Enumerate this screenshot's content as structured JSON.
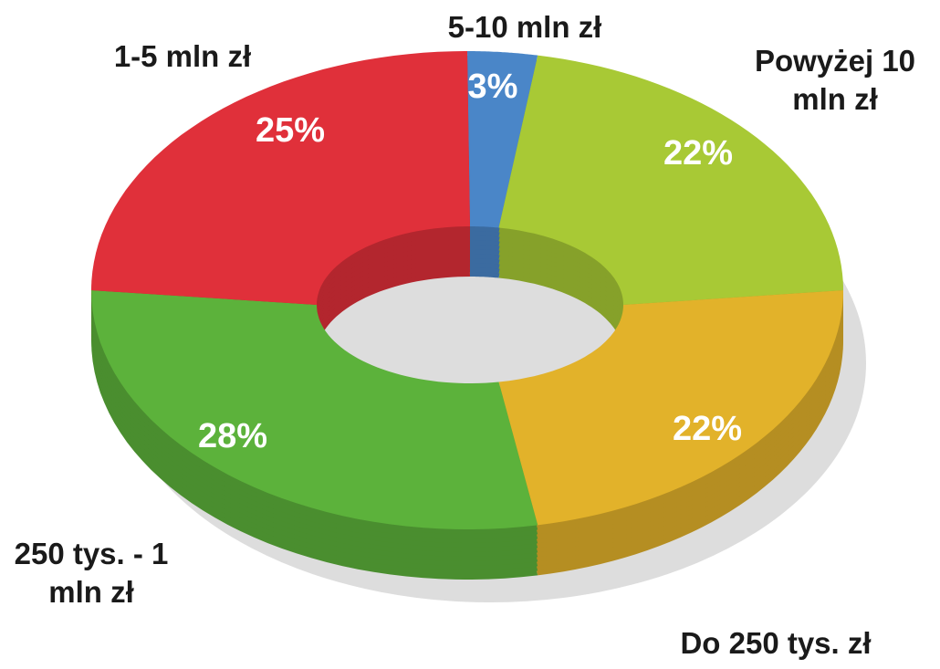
{
  "chart_data": {
    "type": "donut",
    "categories": [
      "5-10 mln zł",
      "Powyżej 10 mln zł",
      "Do 250 tys. zł",
      "250 tys. - 1 mln zł",
      "1-5 mln zł"
    ],
    "values": [
      3,
      22,
      22,
      28,
      25
    ],
    "value_labels": [
      "3%",
      "22%",
      "22%",
      "28%",
      "25%"
    ],
    "colors": [
      "#4a86c8",
      "#a8c935",
      "#e2b22a",
      "#5cb23b",
      "#e0303a"
    ]
  }
}
